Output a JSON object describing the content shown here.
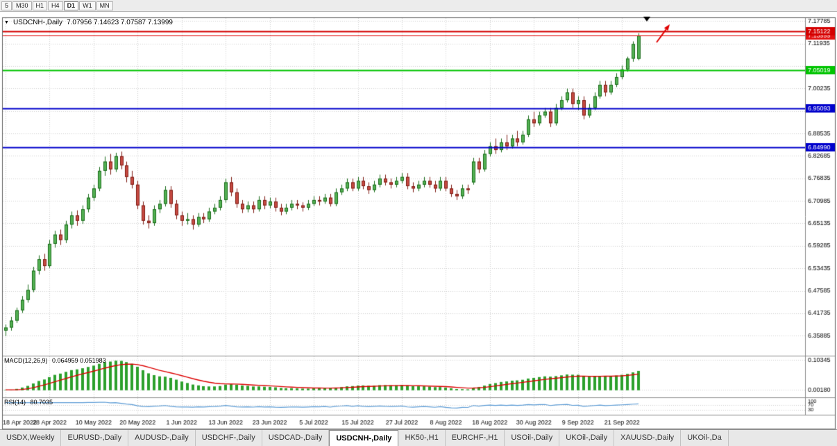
{
  "toolbar": {
    "timeframes": [
      "5",
      "M30",
      "H1",
      "H4",
      "D1",
      "W1",
      "MN"
    ],
    "active": "D1"
  },
  "chart": {
    "symbol": "USDCNH-,Daily",
    "ohlc": "7.07956 7.14623 7.07587 7.13999"
  },
  "icons": {
    "one_click": "▼"
  },
  "price_axis": {
    "ticks": [
      "7.17785",
      "7.11935",
      "7.06085",
      "7.00235",
      "6.94385",
      "6.88535",
      "6.82685",
      "6.76835",
      "6.70985",
      "6.65135",
      "6.59285",
      "6.53435",
      "6.47585",
      "6.41735",
      "6.35885"
    ]
  },
  "lines": [
    {
      "label": "7.13999",
      "price": 7.13999,
      "color": "#e21212",
      "width": 1,
      "role": "bid-price"
    },
    {
      "label": "7.15122",
      "price": 7.15122,
      "color": "#d40000",
      "width": 2,
      "role": "resistance-line"
    },
    {
      "label": "7.05019",
      "price": 7.05019,
      "color": "#00c400",
      "width": 2,
      "role": "support-line"
    },
    {
      "label": "6.95093",
      "price": 6.95093,
      "color": "#0000cc",
      "width": 2,
      "role": "support-line"
    },
    {
      "label": "6.84990",
      "price": 6.8499,
      "color": "#0000cc",
      "width": 2,
      "role": "support-line"
    }
  ],
  "macd": {
    "title": "MACD(12,26,9)",
    "values": "0.064959 0.051983",
    "axis": [
      "0.10345",
      "0.00180"
    ]
  },
  "rsi": {
    "title": "RSI(14)",
    "value": "80.7035",
    "axis": [
      "100",
      "70",
      "30"
    ]
  },
  "tabs": {
    "items": [
      "USDX,Weekly",
      "EURUSD-,Daily",
      "AUDUSD-,Daily",
      "USDCHF-,Daily",
      "USDCAD-,Daily",
      "USDCNH-,Daily",
      "HK50-,H1",
      "EURCHF-,H1",
      "USOil-,Daily",
      "UKOil-,Daily",
      "XAUUSD-,Daily",
      "UKOil-,Da"
    ],
    "active": "USDCNH-,Daily"
  },
  "annotations": [
    {
      "name": "down-triangle-marker",
      "color": "#000000"
    },
    {
      "name": "up-red-arrow",
      "color": "#e00000"
    }
  ],
  "chart_data": {
    "type": "candlestick",
    "symbol": "USDCNH",
    "timeframe": "Daily",
    "title": "USDCNH-,Daily 7.07956 7.14623 7.07587 7.13999",
    "ylim": [
      6.35885,
      7.17785
    ],
    "label_every": 8,
    "x_labels": [
      "18 Apr 2022",
      "28 Apr 2022",
      "10 May 2022",
      "20 May 2022",
      "1 Jun 2022",
      "13 Jun 2022",
      "23 Jun 2022",
      "5 Jul 2022",
      "15 Jul 2022",
      "27 Jul 2022",
      "8 Aug 2022",
      "18 Aug 2022",
      "30 Aug 2022",
      "9 Sep 2022",
      "21 Sep 2022"
    ],
    "colors": {
      "up_fill": "#53b153",
      "up_border": "#1a6b1a",
      "down_fill": "#c64a42",
      "down_border": "#7e1c14",
      "macd_hist": "#2ca02c",
      "macd_signal": "#dd0000",
      "rsi": "#5b9bd5",
      "grid": "#cfcfcf"
    },
    "candles": [
      [
        6.372,
        6.388,
        6.358,
        6.38
      ],
      [
        6.38,
        6.408,
        6.372,
        6.398
      ],
      [
        6.398,
        6.432,
        6.392,
        6.425
      ],
      [
        6.425,
        6.462,
        6.418,
        6.452
      ],
      [
        6.452,
        6.492,
        6.445,
        6.478
      ],
      [
        6.478,
        6.538,
        6.472,
        6.528
      ],
      [
        6.528,
        6.568,
        6.518,
        6.558
      ],
      [
        6.558,
        6.572,
        6.528,
        6.54
      ],
      [
        6.54,
        6.608,
        6.535,
        6.598
      ],
      [
        6.598,
        6.632,
        6.588,
        6.622
      ],
      [
        6.622,
        6.635,
        6.595,
        6.608
      ],
      [
        6.608,
        6.658,
        6.6,
        6.648
      ],
      [
        6.648,
        6.682,
        6.638,
        6.672
      ],
      [
        6.672,
        6.685,
        6.645,
        6.658
      ],
      [
        6.658,
        6.698,
        6.65,
        6.688
      ],
      [
        6.688,
        6.728,
        6.68,
        6.718
      ],
      [
        6.718,
        6.752,
        6.71,
        6.742
      ],
      [
        6.742,
        6.798,
        6.735,
        6.788
      ],
      [
        6.788,
        6.825,
        6.775,
        6.812
      ],
      [
        6.812,
        6.832,
        6.778,
        6.792
      ],
      [
        6.792,
        6.835,
        6.785,
        6.826
      ],
      [
        6.826,
        6.838,
        6.792,
        6.802
      ],
      [
        6.802,
        6.812,
        6.758,
        6.772
      ],
      [
        6.772,
        6.788,
        6.742,
        6.752
      ],
      [
        6.752,
        6.762,
        6.688,
        6.698
      ],
      [
        6.698,
        6.708,
        6.648,
        6.658
      ],
      [
        6.658,
        6.672,
        6.638,
        6.652
      ],
      [
        6.652,
        6.698,
        6.645,
        6.688
      ],
      [
        6.688,
        6.712,
        6.678,
        6.702
      ],
      [
        6.702,
        6.748,
        6.695,
        6.738
      ],
      [
        6.738,
        6.748,
        6.692,
        6.702
      ],
      [
        6.702,
        6.712,
        6.662,
        6.672
      ],
      [
        6.672,
        6.682,
        6.645,
        6.658
      ],
      [
        6.658,
        6.678,
        6.648,
        6.662
      ],
      [
        6.662,
        6.672,
        6.635,
        6.648
      ],
      [
        6.648,
        6.678,
        6.642,
        6.668
      ],
      [
        6.668,
        6.678,
        6.652,
        6.662
      ],
      [
        6.662,
        6.692,
        6.655,
        6.682
      ],
      [
        6.682,
        6.702,
        6.675,
        6.692
      ],
      [
        6.692,
        6.722,
        6.685,
        6.712
      ],
      [
        6.712,
        6.768,
        6.705,
        6.758
      ],
      [
        6.758,
        6.772,
        6.722,
        6.732
      ],
      [
        6.732,
        6.742,
        6.692,
        6.702
      ],
      [
        6.702,
        6.712,
        6.678,
        6.688
      ],
      [
        6.688,
        6.708,
        6.68,
        6.698
      ],
      [
        6.698,
        6.708,
        6.678,
        6.688
      ],
      [
        6.688,
        6.722,
        6.682,
        6.712
      ],
      [
        6.712,
        6.722,
        6.688,
        6.698
      ],
      [
        6.698,
        6.718,
        6.69,
        6.708
      ],
      [
        6.708,
        6.718,
        6.682,
        6.692
      ],
      [
        6.692,
        6.702,
        6.672,
        6.682
      ],
      [
        6.682,
        6.702,
        6.675,
        6.692
      ],
      [
        6.692,
        6.712,
        6.685,
        6.702
      ],
      [
        6.702,
        6.712,
        6.688,
        6.698
      ],
      [
        6.698,
        6.706,
        6.682,
        6.692
      ],
      [
        6.692,
        6.712,
        6.686,
        6.702
      ],
      [
        6.702,
        6.722,
        6.696,
        6.712
      ],
      [
        6.712,
        6.722,
        6.698,
        6.708
      ],
      [
        6.708,
        6.728,
        6.702,
        6.718
      ],
      [
        6.718,
        6.728,
        6.695,
        6.702
      ],
      [
        6.702,
        6.742,
        6.696,
        6.732
      ],
      [
        6.732,
        6.752,
        6.725,
        6.742
      ],
      [
        6.742,
        6.768,
        6.735,
        6.758
      ],
      [
        6.758,
        6.768,
        6.735,
        6.742
      ],
      [
        6.742,
        6.772,
        6.736,
        6.762
      ],
      [
        6.762,
        6.772,
        6.74,
        6.748
      ],
      [
        6.748,
        6.758,
        6.728,
        6.738
      ],
      [
        6.738,
        6.762,
        6.732,
        6.752
      ],
      [
        6.752,
        6.778,
        6.745,
        6.768
      ],
      [
        6.768,
        6.778,
        6.75,
        6.758
      ],
      [
        6.758,
        6.768,
        6.742,
        6.752
      ],
      [
        6.752,
        6.772,
        6.745,
        6.762
      ],
      [
        6.762,
        6.782,
        6.755,
        6.772
      ],
      [
        6.772,
        6.782,
        6.74,
        6.748
      ],
      [
        6.748,
        6.758,
        6.732,
        6.742
      ],
      [
        6.742,
        6.762,
        6.735,
        6.752
      ],
      [
        6.752,
        6.772,
        6.745,
        6.762
      ],
      [
        6.762,
        6.772,
        6.744,
        6.752
      ],
      [
        6.752,
        6.762,
        6.732,
        6.742
      ],
      [
        6.742,
        6.772,
        6.736,
        6.762
      ],
      [
        6.762,
        6.772,
        6.735,
        6.742
      ],
      [
        6.742,
        6.752,
        6.72,
        6.728
      ],
      [
        6.728,
        6.738,
        6.712,
        6.722
      ],
      [
        6.722,
        6.752,
        6.715,
        6.742
      ],
      [
        6.742,
        6.752,
        6.728,
        6.738
      ],
      [
        6.758,
        6.822,
        6.752,
        6.812
      ],
      [
        6.812,
        6.822,
        6.782,
        6.792
      ],
      [
        6.792,
        6.842,
        6.786,
        6.832
      ],
      [
        6.832,
        6.862,
        6.825,
        6.852
      ],
      [
        6.852,
        6.872,
        6.832,
        6.842
      ],
      [
        6.842,
        6.872,
        6.836,
        6.862
      ],
      [
        6.862,
        6.882,
        6.842,
        6.852
      ],
      [
        6.852,
        6.882,
        6.846,
        6.872
      ],
      [
        6.872,
        6.892,
        6.852,
        6.862
      ],
      [
        6.862,
        6.892,
        6.856,
        6.882
      ],
      [
        6.882,
        6.932,
        6.876,
        6.922
      ],
      [
        6.922,
        6.942,
        6.902,
        6.912
      ],
      [
        6.912,
        6.942,
        6.906,
        6.932
      ],
      [
        6.932,
        6.952,
        6.926,
        6.942
      ],
      [
        6.942,
        6.952,
        6.902,
        6.912
      ],
      [
        6.912,
        6.962,
        6.906,
        6.952
      ],
      [
        6.952,
        6.982,
        6.946,
        6.972
      ],
      [
        6.972,
        7.002,
        6.966,
        6.992
      ],
      [
        6.992,
        7.002,
        6.952,
        6.962
      ],
      [
        6.962,
        6.982,
        6.946,
        6.972
      ],
      [
        6.972,
        6.982,
        6.922,
        6.932
      ],
      [
        6.932,
        6.962,
        6.926,
        6.952
      ],
      [
        6.952,
        6.992,
        6.946,
        6.982
      ],
      [
        6.982,
        7.022,
        6.976,
        7.012
      ],
      [
        7.012,
        7.022,
        6.982,
        6.992
      ],
      [
        6.992,
        7.022,
        6.986,
        7.012
      ],
      [
        7.012,
        7.042,
        7.006,
        7.032
      ],
      [
        7.032,
        7.062,
        7.026,
        7.052
      ],
      [
        7.052,
        7.085,
        7.046,
        7.08
      ],
      [
        7.08,
        7.125,
        7.072,
        7.118
      ],
      [
        7.0796,
        7.1462,
        7.0759,
        7.14
      ]
    ]
  }
}
